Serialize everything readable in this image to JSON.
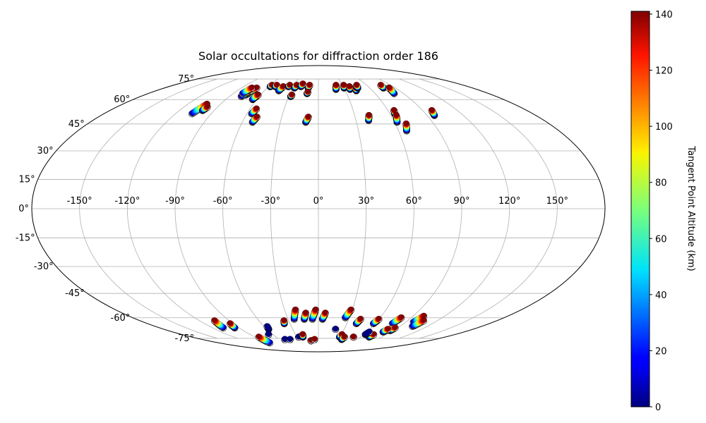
{
  "chart_data": {
    "type": "scatter",
    "projection": "mollweide",
    "title": "Solar occultations for diffraction order 186",
    "xlabel": "",
    "ylabel": "",
    "grid": true,
    "lon_tick_labels": [
      "-150°",
      "-120°",
      "-90°",
      "-60°",
      "-30°",
      "0°",
      "30°",
      "60°",
      "90°",
      "120°",
      "150°"
    ],
    "lat_tick_labels": [
      "75°",
      "60°",
      "45°",
      "30°",
      "15°",
      "0°",
      "-15°",
      "-30°",
      "-45°",
      "-60°",
      "-75°"
    ],
    "colorbar": {
      "label": "Tangent Point Altitude (km)",
      "range": [
        0,
        141
      ],
      "colormap": "jet",
      "tick_labels": [
        "0",
        "20",
        "40",
        "60",
        "80",
        "100",
        "120",
        "140"
      ]
    },
    "occultations": [
      {
        "lon": -75,
        "lat_bottom": 63,
        "lat_top": 68,
        "alt_min": 0,
        "alt_max": 140
      },
      {
        "lon": -78,
        "lat_bottom": 62,
        "lat_top": 66,
        "alt_min": 0,
        "alt_max": 140
      },
      {
        "lon": -80,
        "lat_bottom": 64,
        "lat_top": 68,
        "alt_min": 0,
        "alt_max": 140
      },
      {
        "lon": -64,
        "lat_bottom": 60,
        "lat_top": 63,
        "alt_min": 0,
        "alt_max": 140
      },
      {
        "lon": -58,
        "lat_bottom": 69,
        "lat_top": 70,
        "alt_min": 0,
        "alt_max": 140
      },
      {
        "lon": -52,
        "lat_bottom": 69,
        "lat_top": 70,
        "alt_min": 0,
        "alt_max": 140
      },
      {
        "lon": -44,
        "lat_bottom": 66,
        "lat_top": 69,
        "alt_min": 0,
        "alt_max": 140
      },
      {
        "lon": -36,
        "lat_bottom": 69,
        "lat_top": 70,
        "alt_min": 0,
        "alt_max": 140
      },
      {
        "lon": -28,
        "lat_bottom": 68,
        "lat_top": 70,
        "alt_min": 0,
        "alt_max": 140
      },
      {
        "lon": -21,
        "lat_bottom": 69,
        "lat_top": 71,
        "alt_min": 0,
        "alt_max": 140
      },
      {
        "lon": -12,
        "lat_bottom": 68,
        "lat_top": 70,
        "alt_min": 0,
        "alt_max": 140
      },
      {
        "lon": -28,
        "lat_bottom": 62,
        "lat_top": 63,
        "alt_min": 0,
        "alt_max": 140
      },
      {
        "lon": -12,
        "lat_bottom": 64,
        "lat_top": 65,
        "alt_min": 0,
        "alt_max": 140
      },
      {
        "lon": -56,
        "lat_bottom": 51,
        "lat_top": 54,
        "alt_min": 0,
        "alt_max": 140
      },
      {
        "lon": -52,
        "lat_bottom": 46,
        "lat_top": 49,
        "alt_min": 0,
        "alt_max": 140
      },
      {
        "lon": -10,
        "lat_bottom": 46,
        "lat_top": 49,
        "alt_min": 0,
        "alt_max": 140
      },
      {
        "lon": -106,
        "lat_bottom": 51,
        "lat_top": 57,
        "alt_min": 0,
        "alt_max": 140
      },
      {
        "lon": -100,
        "lat_bottom": 53,
        "lat_top": 55,
        "alt_min": 0,
        "alt_max": 140
      },
      {
        "lon": 20,
        "lat_bottom": 67,
        "lat_top": 70,
        "alt_min": 0,
        "alt_max": 140
      },
      {
        "lon": 30,
        "lat_bottom": 68,
        "lat_top": 70,
        "alt_min": 0,
        "alt_max": 140
      },
      {
        "lon": 36,
        "lat_bottom": 67,
        "lat_top": 69,
        "alt_min": 0,
        "alt_max": 140
      },
      {
        "lon": 42,
        "lat_bottom": 66,
        "lat_top": 68,
        "alt_min": 0,
        "alt_max": 140
      },
      {
        "lon": 46,
        "lat_bottom": 68,
        "lat_top": 70,
        "alt_min": 0,
        "alt_max": 140
      },
      {
        "lon": 76,
        "lat_bottom": 68,
        "lat_top": 70,
        "alt_min": 0,
        "alt_max": 140
      },
      {
        "lon": 80,
        "lat_bottom": 64,
        "lat_top": 68,
        "alt_min": 0,
        "alt_max": 140
      },
      {
        "lon": 40,
        "lat_bottom": 47,
        "lat_top": 50,
        "alt_min": 0,
        "alt_max": 140
      },
      {
        "lon": 64,
        "lat_bottom": 51,
        "lat_top": 53,
        "alt_min": 0,
        "alt_max": 140
      },
      {
        "lon": 62,
        "lat_bottom": 46,
        "lat_top": 50,
        "alt_min": 0,
        "alt_max": 140
      },
      {
        "lon": 66,
        "lat_bottom": 41,
        "lat_top": 45,
        "alt_min": 0,
        "alt_max": 140
      },
      {
        "lon": 96,
        "lat_bottom": 50,
        "lat_top": 53,
        "alt_min": 0,
        "alt_max": 140
      },
      {
        "lon": -108,
        "lat_bottom": -67,
        "lat_top": -62,
        "alt_min": 0,
        "alt_max": 140
      },
      {
        "lon": -95,
        "lat_bottom": -67,
        "lat_top": -64,
        "alt_min": 0,
        "alt_max": 140
      },
      {
        "lon": -88,
        "lat_bottom": -79,
        "lat_top": -74,
        "alt_min": 0,
        "alt_max": 140
      },
      {
        "lon": -24,
        "lat_bottom": -61,
        "lat_top": -55,
        "alt_min": 0,
        "alt_max": 140
      },
      {
        "lon": -14,
        "lat_bottom": -61,
        "lat_top": -57,
        "alt_min": 0,
        "alt_max": 140
      },
      {
        "lon": -6,
        "lat_bottom": -61,
        "lat_top": -55,
        "alt_min": 0,
        "alt_max": 140
      },
      {
        "lon": 4,
        "lat_bottom": -61,
        "lat_top": -57,
        "alt_min": 0,
        "alt_max": 140
      },
      {
        "lon": 26,
        "lat_bottom": -60,
        "lat_top": -55,
        "alt_min": 0,
        "alt_max": 140
      },
      {
        "lon": 40,
        "lat_bottom": -64,
        "lat_top": -61,
        "alt_min": 0,
        "alt_max": 140
      },
      {
        "lon": 58,
        "lat_bottom": -64,
        "lat_top": -61,
        "alt_min": 0,
        "alt_max": 140
      },
      {
        "lon": 78,
        "lat_bottom": -64,
        "lat_top": -60,
        "alt_min": 0,
        "alt_max": 140
      },
      {
        "lon": 98,
        "lat_bottom": -63,
        "lat_top": -59,
        "alt_min": 0,
        "alt_max": 140
      },
      {
        "lon": 104,
        "lat_bottom": -66,
        "lat_top": -62,
        "alt_min": 0,
        "alt_max": 140
      },
      {
        "lon": 86,
        "lat_bottom": -69,
        "lat_top": -67,
        "alt_min": 0,
        "alt_max": 140
      },
      {
        "lon": 72,
        "lat_bottom": -74,
        "lat_top": -72,
        "alt_min": 0,
        "alt_max": 140
      },
      {
        "lon": -58,
        "lat_bottom": -68,
        "lat_top": -66,
        "alt_min": 0,
        "alt_max": 0
      },
      {
        "lon": -66,
        "lat_bottom": -72,
        "lat_top": -72,
        "alt_min": 0,
        "alt_max": 0
      },
      {
        "lon": -52,
        "lat_bottom": -76,
        "lat_top": -76,
        "alt_min": 0,
        "alt_max": 0
      },
      {
        "lon": -44,
        "lat_bottom": -76,
        "lat_top": -76,
        "alt_min": 0,
        "alt_max": 0
      },
      {
        "lon": -36,
        "lat_bottom": -64,
        "lat_top": -62,
        "alt_min": 0,
        "alt_max": 140
      },
      {
        "lon": -28,
        "lat_bottom": -74,
        "lat_top": -74,
        "alt_min": 0,
        "alt_max": 0
      },
      {
        "lon": -22,
        "lat_bottom": -74,
        "lat_top": -72,
        "alt_min": 0,
        "alt_max": 140
      },
      {
        "lon": -12,
        "lat_bottom": -77,
        "lat_top": -77,
        "alt_min": 0,
        "alt_max": 140
      },
      {
        "lon": -6,
        "lat_bottom": -76,
        "lat_top": -76,
        "alt_min": 0,
        "alt_max": 140
      },
      {
        "lon": 20,
        "lat_bottom": -68,
        "lat_top": -68,
        "alt_min": 0,
        "alt_max": 0
      },
      {
        "lon": 30,
        "lat_bottom": -74,
        "lat_top": -72,
        "alt_min": 0,
        "alt_max": 140
      },
      {
        "lon": 36,
        "lat_bottom": -76,
        "lat_top": -74,
        "alt_min": 0,
        "alt_max": 140
      },
      {
        "lon": 50,
        "lat_bottom": -74,
        "lat_top": -74,
        "alt_min": 0,
        "alt_max": 140
      },
      {
        "lon": 62,
        "lat_bottom": -72,
        "lat_top": -70,
        "alt_min": 0,
        "alt_max": 0
      },
      {
        "lon": 80,
        "lat_bottom": -70,
        "lat_top": -68,
        "alt_min": 0,
        "alt_max": 140
      }
    ]
  }
}
